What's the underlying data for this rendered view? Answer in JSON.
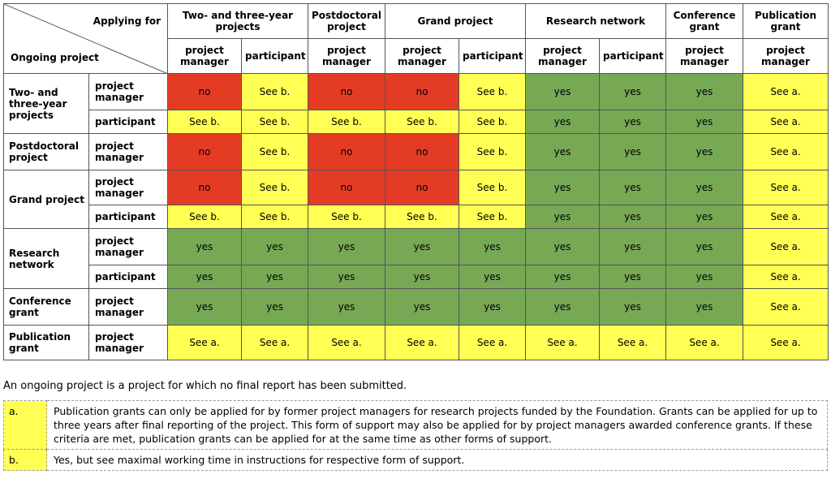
{
  "header": {
    "applying_for": "Applying for",
    "ongoing_project": "Ongoing project",
    "groups": [
      {
        "label": "Two- and three-year projects",
        "roles": [
          "project manager",
          "participant"
        ]
      },
      {
        "label": "Postdoctoral project",
        "roles": [
          "project manager"
        ]
      },
      {
        "label": "Grand project",
        "roles": [
          "project manager",
          "participant"
        ]
      },
      {
        "label": "Research network",
        "roles": [
          "project manager",
          "participant"
        ]
      },
      {
        "label": "Conference grant",
        "roles": [
          "project manager"
        ]
      },
      {
        "label": "Publication grant",
        "roles": [
          "project manager"
        ]
      }
    ]
  },
  "colors": {
    "no": "#e43b25",
    "see_b": "#ffff54",
    "see_a": "#ffff54",
    "yes": "#77a955"
  },
  "rows": [
    {
      "group": "Two- and three-year projects",
      "role": "project manager",
      "cells": [
        "no",
        "See b.",
        "no",
        "no",
        "See b.",
        "yes",
        "yes",
        "yes",
        "See a."
      ]
    },
    {
      "group": "",
      "role": "participant",
      "cells": [
        "See b.",
        "See b.",
        "See b.",
        "See b.",
        "See b.",
        "yes",
        "yes",
        "yes",
        "See a."
      ]
    },
    {
      "group": "Postdoctoral project",
      "role": "project manager",
      "cells": [
        "no",
        "See b.",
        "no",
        "no",
        "See b.",
        "yes",
        "yes",
        "yes",
        "See a."
      ]
    },
    {
      "group": "Grand project",
      "role": "project manager",
      "cells": [
        "no",
        "See b.",
        "no",
        "no",
        "See b.",
        "yes",
        "yes",
        "yes",
        "See a."
      ]
    },
    {
      "group": "",
      "role": "participant",
      "cells": [
        "See b.",
        "See b.",
        "See b.",
        "See b.",
        "See b.",
        "yes",
        "yes",
        "yes",
        "See a."
      ]
    },
    {
      "group": "Research network",
      "role": "project manager",
      "cells": [
        "yes",
        "yes",
        "yes",
        "yes",
        "yes",
        "yes",
        "yes",
        "yes",
        "See a."
      ]
    },
    {
      "group": "",
      "role": "participant",
      "cells": [
        "yes",
        "yes",
        "yes",
        "yes",
        "yes",
        "yes",
        "yes",
        "yes",
        "See a."
      ]
    },
    {
      "group": "Conference grant",
      "role": "project manager",
      "cells": [
        "yes",
        "yes",
        "yes",
        "yes",
        "yes",
        "yes",
        "yes",
        "yes",
        "See a."
      ]
    },
    {
      "group": "Publication grant",
      "role": "project manager",
      "cells": [
        "See a.",
        "See a.",
        "See a.",
        "See a.",
        "See a.",
        "See a.",
        "See a.",
        "See a.",
        "See a."
      ]
    }
  ],
  "definition": "An ongoing project is a project for which no final report has been submitted.",
  "notes": [
    {
      "key": "a.",
      "text": "Publication grants can only be applied for by former project managers for research projects funded by the Foundation. Grants can be applied for up to three years after final reporting of the project. This form of support may also be applied for by project managers awarded conference grants. If these criteria are met, publication grants can be applied for at the same time as other forms of support."
    },
    {
      "key": "b.",
      "text": "Yes, but see maximal working time in instructions for respective form of support."
    }
  ]
}
